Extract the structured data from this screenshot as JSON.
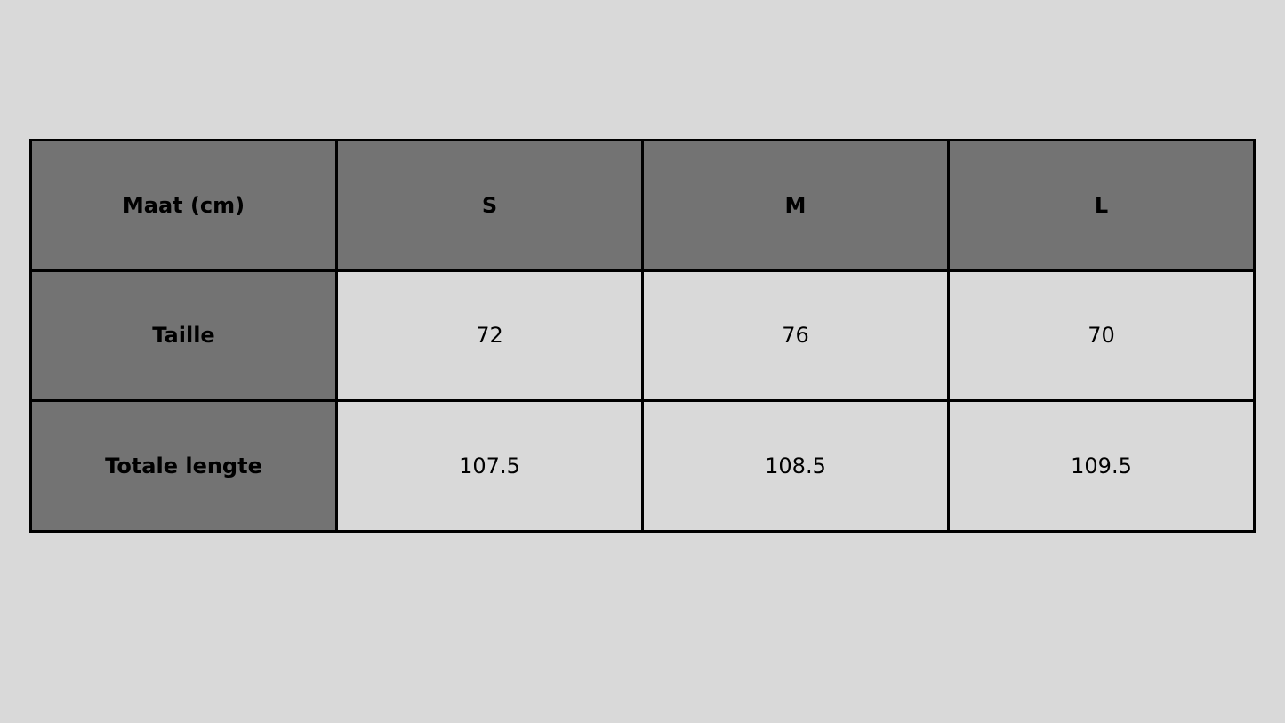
{
  "table": {
    "header": [
      "Maat (cm)",
      "S",
      "M",
      "L"
    ],
    "rows": [
      {
        "label": "Taille",
        "values": [
          "72",
          "76",
          "70"
        ]
      },
      {
        "label": "Totale lengte",
        "values": [
          "107.5",
          "108.5",
          "109.5"
        ]
      }
    ]
  },
  "colors": {
    "header_bg": "#737373",
    "cell_bg": "#d9d9d9",
    "border": "#000000"
  }
}
